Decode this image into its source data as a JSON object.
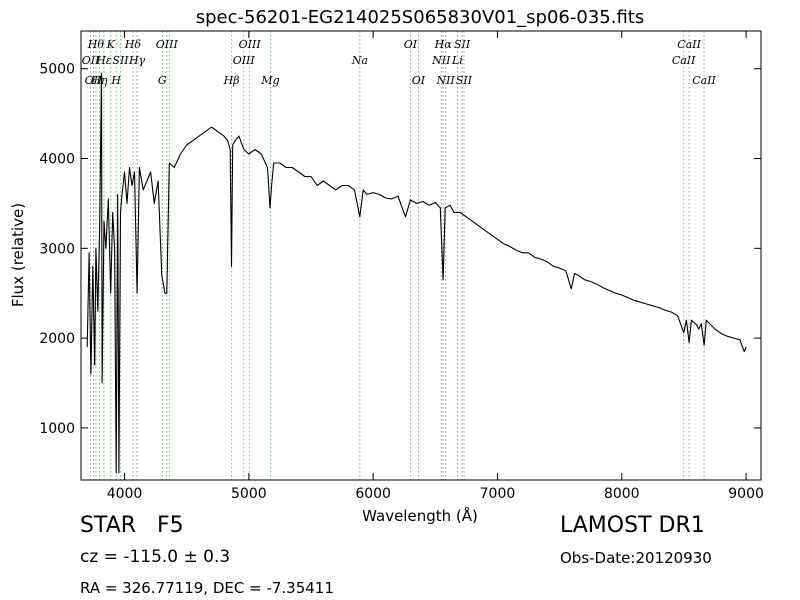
{
  "chart_data": {
    "type": "line",
    "title": "spec-56201-EG214025S065830V01_sp06-035.fits",
    "xlabel": "Wavelength (Å)",
    "ylabel": "Flux (relative)",
    "xlim": [
      3650,
      9120
    ],
    "ylim": [
      420,
      5420
    ],
    "xticks": [
      4000,
      5000,
      6000,
      7000,
      8000,
      9000
    ],
    "xtick_labels": [
      "4000",
      "5000",
      "6000",
      "7000",
      "8000",
      "9000"
    ],
    "yticks": [
      1000,
      2000,
      3000,
      4000,
      5000
    ],
    "ytick_labels": [
      "1000",
      "2000",
      "3000",
      "4000",
      "5000"
    ],
    "grid": false,
    "line_color": "#000000",
    "marker_color": "#66bb66",
    "series": [
      {
        "x": [
          3700,
          3715,
          3730,
          3745,
          3760,
          3770,
          3785,
          3800,
          3815,
          3820,
          3835,
          3850,
          3870,
          3889,
          3905,
          3920,
          3933,
          3945,
          3955,
          3968,
          3980,
          4000,
          4020,
          4040,
          4060,
          4080,
          4101,
          4120,
          4150,
          4180,
          4210,
          4240,
          4270,
          4300,
          4325,
          4340,
          4360,
          4400,
          4450,
          4500,
          4550,
          4600,
          4650,
          4700,
          4750,
          4800,
          4830,
          4850,
          4861,
          4870,
          4890,
          4920,
          4960,
          5000,
          5050,
          5100,
          5150,
          5170,
          5183,
          5200,
          5250,
          5300,
          5350,
          5400,
          5450,
          5500,
          5550,
          5600,
          5650,
          5700,
          5750,
          5800,
          5850,
          5893,
          5920,
          5950,
          6000,
          6050,
          6100,
          6150,
          6200,
          6260,
          6300,
          6350,
          6400,
          6450,
          6500,
          6540,
          6563,
          6580,
          6620,
          6650,
          6700,
          6750,
          6800,
          6850,
          6900,
          6950,
          7000,
          7050,
          7100,
          7150,
          7200,
          7250,
          7300,
          7350,
          7400,
          7450,
          7500,
          7550,
          7594,
          7620,
          7650,
          7700,
          7750,
          7800,
          7850,
          7900,
          7950,
          8000,
          8050,
          8100,
          8150,
          8200,
          8250,
          8300,
          8350,
          8400,
          8450,
          8498,
          8520,
          8542,
          8560,
          8600,
          8620,
          8640,
          8662,
          8680,
          8700,
          8750,
          8800,
          8850,
          8900,
          8950,
          8985,
          9000
        ],
        "y": [
          1900,
          2950,
          1600,
          2800,
          1700,
          3000,
          2300,
          3200,
          4950,
          1500,
          3300,
          3000,
          3550,
          2500,
          3400,
          3000,
          500,
          3600,
          500,
          3400,
          3600,
          3850,
          3500,
          3900,
          3700,
          3850,
          2500,
          3900,
          3650,
          3750,
          3850,
          3500,
          3750,
          2700,
          2500,
          2500,
          3950,
          3900,
          4050,
          4150,
          4200,
          4250,
          4300,
          4350,
          4300,
          4250,
          4200,
          4100,
          2800,
          4150,
          4200,
          4250,
          4100,
          4050,
          4100,
          4050,
          3900,
          3450,
          3700,
          3950,
          3950,
          3900,
          3900,
          3850,
          3800,
          3800,
          3700,
          3750,
          3700,
          3650,
          3700,
          3700,
          3650,
          3350,
          3650,
          3600,
          3620,
          3600,
          3560,
          3550,
          3580,
          3350,
          3540,
          3500,
          3520,
          3480,
          3510,
          3450,
          2650,
          3450,
          3480,
          3400,
          3400,
          3350,
          3300,
          3250,
          3200,
          3150,
          3100,
          3050,
          3020,
          2980,
          2950,
          2950,
          2900,
          2880,
          2850,
          2800,
          2780,
          2750,
          2550,
          2720,
          2700,
          2650,
          2630,
          2600,
          2560,
          2530,
          2500,
          2480,
          2450,
          2420,
          2400,
          2380,
          2360,
          2340,
          2310,
          2290,
          2250,
          2060,
          2200,
          1950,
          2200,
          2150,
          2100,
          2160,
          1920,
          2200,
          2170,
          2100,
          2050,
          2020,
          2000,
          1980,
          1850,
          1900
        ]
      }
    ],
    "lines": [
      {
        "x": 3727,
        "label": "OII",
        "row": 2
      },
      {
        "x": 3750,
        "label": "OII",
        "row": 3
      },
      {
        "x": 3770,
        "label": "Hθ",
        "row": 1
      },
      {
        "x": 3798,
        "label": "Hη",
        "row": 3
      },
      {
        "x": 3835,
        "label": "Hε",
        "row": 2
      },
      {
        "x": 3889,
        "label": "K",
        "row": 1
      },
      {
        "x": 3933,
        "label": "H",
        "row": 3
      },
      {
        "x": 3968,
        "label": "SII",
        "row": 2
      },
      {
        "x": 4068,
        "label": "Hδ",
        "row": 1
      },
      {
        "x": 4101,
        "label": "Hγ",
        "row": 2
      },
      {
        "x": 4304,
        "label": "G",
        "row": 3
      },
      {
        "x": 4340,
        "label": "OIII",
        "row": 1
      },
      {
        "x": 4363,
        "label": "",
        "row": 0
      },
      {
        "x": 4861,
        "label": "Hβ",
        "row": 3
      },
      {
        "x": 4959,
        "label": "OIII",
        "row": 2
      },
      {
        "x": 5007,
        "label": "OIII",
        "row": 1
      },
      {
        "x": 5175,
        "label": "Mg",
        "row": 3
      },
      {
        "x": 5893,
        "label": "Na",
        "row": 2
      },
      {
        "x": 6300,
        "label": "OI",
        "row": 1
      },
      {
        "x": 6364,
        "label": "OI",
        "row": 3
      },
      {
        "x": 6548,
        "label": "NII",
        "row": 2
      },
      {
        "x": 6563,
        "label": "Hα",
        "row": 1
      },
      {
        "x": 6583,
        "label": "NII",
        "row": 3
      },
      {
        "x": 6678,
        "label": "Li",
        "row": 2
      },
      {
        "x": 6716,
        "label": "SII",
        "row": 1
      },
      {
        "x": 6731,
        "label": "SII",
        "row": 3
      },
      {
        "x": 8498,
        "label": "CaII",
        "row": 2
      },
      {
        "x": 8542,
        "label": "CaII",
        "row": 1
      },
      {
        "x": 8662,
        "label": "CaII",
        "row": 3
      }
    ]
  },
  "info": {
    "class_label": "STAR",
    "subclass": "F5",
    "cz_text": "cz = -115.0  ± 0.3",
    "coords_text": "RA = 326.77119, DEC = -7.35411",
    "survey": "LAMOST DR1",
    "obs_date": "Obs-Date:20120930"
  }
}
